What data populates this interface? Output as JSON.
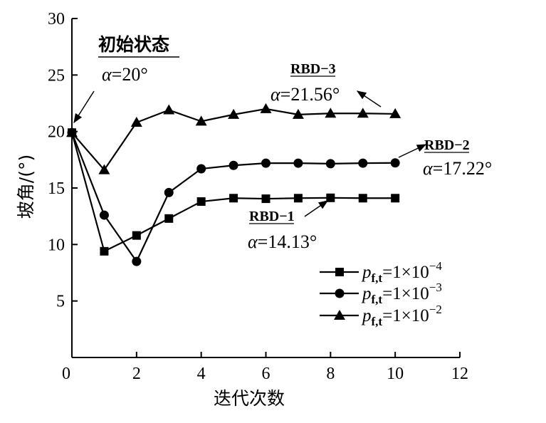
{
  "chart_data": {
    "type": "line",
    "title": "",
    "xlabel": "迭代次数",
    "ylabel": "坡角/(°)",
    "xlim": [
      0,
      12
    ],
    "ylim": [
      0,
      30
    ],
    "xticks": [
      "0",
      "2",
      "4",
      "6",
      "8",
      "10",
      "12"
    ],
    "yticks": [
      "5",
      "10",
      "15",
      "20",
      "25",
      "30"
    ],
    "grid": false,
    "legend_position": "bottom-right",
    "series": [
      {
        "name": "pf,t=1×10−4",
        "symbol": "p",
        "subscript": "f,t",
        "rhs": "=1×10",
        "exponent": "−4",
        "marker": "square",
        "x": [
          0,
          1,
          2,
          3,
          4,
          5,
          6,
          7,
          8,
          9,
          10
        ],
        "y": [
          19.9,
          9.4,
          10.8,
          12.3,
          13.8,
          14.1,
          14.05,
          14.1,
          14.13,
          14.1,
          14.1
        ]
      },
      {
        "name": "pf,t=1×10−3",
        "symbol": "p",
        "subscript": "f,t",
        "rhs": "=1×10",
        "exponent": "−3",
        "marker": "circle",
        "x": [
          0,
          1,
          2,
          3,
          4,
          5,
          6,
          7,
          8,
          9,
          10
        ],
        "y": [
          19.9,
          12.6,
          8.5,
          14.6,
          16.7,
          17.0,
          17.2,
          17.2,
          17.15,
          17.2,
          17.22
        ]
      },
      {
        "name": "pf,t=1×10−2",
        "symbol": "p",
        "subscript": "f,t",
        "rhs": "=1×10",
        "exponent": "−2",
        "marker": "triangle",
        "x": [
          0,
          1,
          2,
          3,
          4,
          5,
          6,
          7,
          8,
          9,
          10
        ],
        "y": [
          19.9,
          16.6,
          20.8,
          21.9,
          20.9,
          21.5,
          22.0,
          21.5,
          21.6,
          21.6,
          21.56
        ]
      }
    ],
    "annotations": {
      "initial_label": "初始状态",
      "initial_value": "=20°",
      "rbd3_label": "RBD−3",
      "rbd3_value": "=21.56°",
      "rbd2_label": "RBD−2",
      "rbd2_value": "=17.22°",
      "rbd1_label": "RBD−1",
      "rbd1_value": "=14.13°",
      "alpha": "α"
    }
  }
}
